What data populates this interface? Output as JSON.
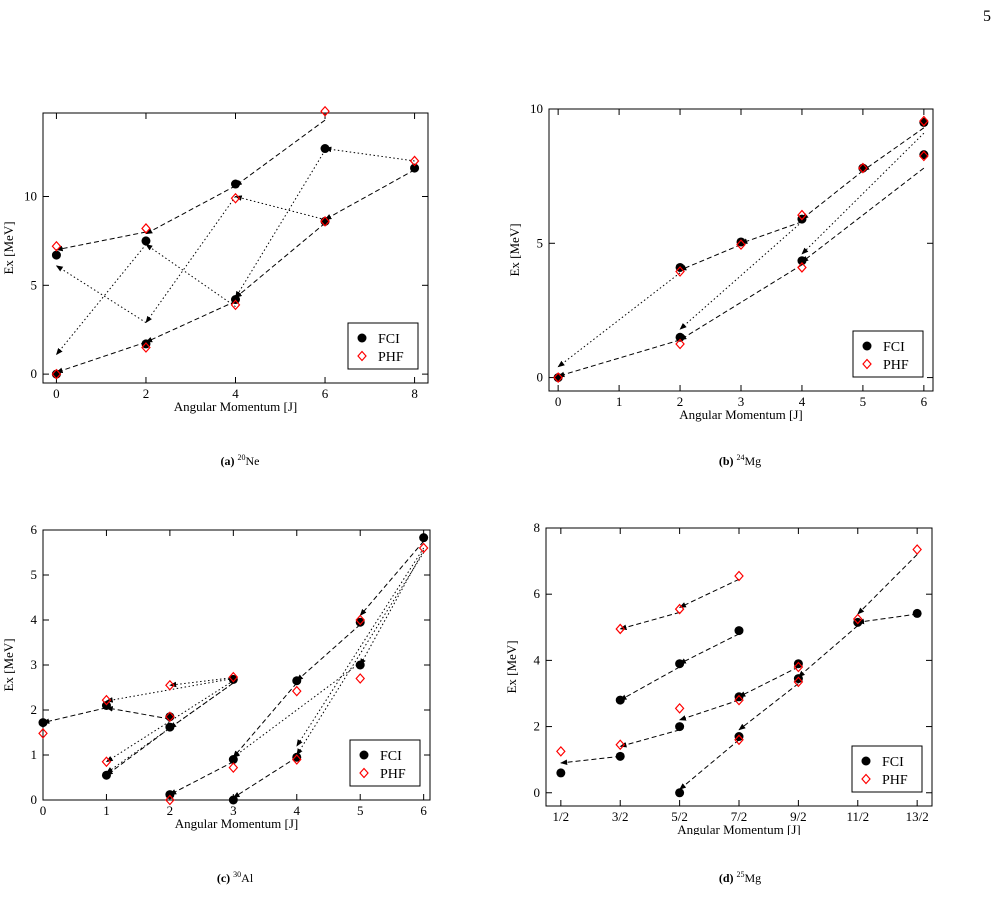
{
  "page_number": "5",
  "chart_data": [
    {
      "type": "scatter",
      "caption_label": "(a)",
      "caption_mass": "20",
      "caption_element": "Ne",
      "xlabel": "Angular Momentum [J]",
      "ylabel": "Ex [MeV]",
      "xlim": [
        -0.3,
        8.3
      ],
      "ylim": [
        -0.5,
        14.7
      ],
      "xticks": [
        0,
        2,
        4,
        6,
        8
      ],
      "xticklabels": [
        "0",
        "2",
        "4",
        "6",
        "8"
      ],
      "yticks": [
        0,
        5,
        10
      ],
      "legend_position": "bottom-right",
      "series": [
        {
          "name": "FCI",
          "marker": "filled-circle",
          "color": "#000000",
          "points": [
            [
              0,
              0
            ],
            [
              0,
              6.7
            ],
            [
              2,
              1.7
            ],
            [
              2,
              7.5
            ],
            [
              4,
              4.2
            ],
            [
              4,
              10.7
            ],
            [
              6,
              8.6
            ],
            [
              6,
              12.7
            ],
            [
              8,
              11.6
            ]
          ]
        },
        {
          "name": "PHF",
          "marker": "open-diamond",
          "color": "#ff0000",
          "points": [
            [
              0,
              0
            ],
            [
              0,
              7.2
            ],
            [
              2,
              1.5
            ],
            [
              2,
              8.2
            ],
            [
              4,
              3.9
            ],
            [
              4,
              9.9
            ],
            [
              6,
              8.6
            ],
            [
              6,
              14.8
            ],
            [
              8,
              12.0
            ]
          ]
        }
      ],
      "arrows": [
        {
          "from": [
            2,
            1.8
          ],
          "to": [
            0,
            0.1
          ],
          "style": "dashed"
        },
        {
          "from": [
            4,
            4.1
          ],
          "to": [
            2,
            1.8
          ],
          "style": "dashed"
        },
        {
          "from": [
            6,
            8.5
          ],
          "to": [
            4,
            4.3
          ],
          "style": "dashed"
        },
        {
          "from": [
            8,
            11.5
          ],
          "to": [
            6,
            8.7
          ],
          "style": "dashed"
        },
        {
          "from": [
            2,
            8.0
          ],
          "to": [
            0,
            7.0
          ],
          "style": "dashed"
        },
        {
          "from": [
            4,
            10.6
          ],
          "to": [
            2,
            7.9
          ],
          "style": "dashed"
        },
        {
          "from": [
            6,
            14.3
          ],
          "to": [
            4,
            10.6
          ],
          "style": "dashed"
        },
        {
          "from": [
            2,
            7.3
          ],
          "to": [
            0,
            1.1
          ],
          "style": "dotted"
        },
        {
          "from": [
            2,
            2.9
          ],
          "to": [
            0,
            6.1
          ],
          "style": "dotted"
        },
        {
          "from": [
            4,
            10.0
          ],
          "to": [
            2,
            2.9
          ],
          "style": "dotted"
        },
        {
          "from": [
            4,
            3.8
          ],
          "to": [
            2,
            7.3
          ],
          "style": "dotted"
        },
        {
          "from": [
            6,
            8.7
          ],
          "to": [
            4,
            10.0
          ],
          "style": "dotted"
        },
        {
          "from": [
            6,
            12.6
          ],
          "to": [
            4,
            4.3
          ],
          "style": "dotted"
        },
        {
          "from": [
            8,
            12.0
          ],
          "to": [
            6,
            12.7
          ],
          "style": "dotted"
        }
      ]
    },
    {
      "type": "scatter",
      "caption_label": "(b)",
      "caption_mass": "24",
      "caption_element": "Mg",
      "xlabel": "Angular Momentum [J]",
      "ylabel": "Ex [MeV]",
      "xlim": [
        -0.15,
        6.15
      ],
      "ylim": [
        -0.5,
        10.0
      ],
      "xticks": [
        0,
        1,
        2,
        3,
        4,
        5,
        6
      ],
      "xticklabels": [
        "0",
        "1",
        "2",
        "3",
        "4",
        "5",
        "6"
      ],
      "yticks": [
        0,
        5,
        10
      ],
      "legend_position": "bottom-right",
      "series": [
        {
          "name": "FCI",
          "marker": "filled-circle",
          "color": "#000000",
          "points": [
            [
              0,
              0
            ],
            [
              2,
              1.5
            ],
            [
              2,
              4.1
            ],
            [
              3,
              5.05
            ],
            [
              4,
              4.35
            ],
            [
              4,
              5.9
            ],
            [
              5,
              7.8
            ],
            [
              6,
              8.3
            ],
            [
              6,
              9.5
            ]
          ]
        },
        {
          "name": "PHF",
          "marker": "open-diamond",
          "color": "#ff0000",
          "points": [
            [
              0,
              0
            ],
            [
              2,
              1.25
            ],
            [
              2,
              3.95
            ],
            [
              3,
              4.95
            ],
            [
              4,
              4.1
            ],
            [
              4,
              6.05
            ],
            [
              5,
              7.8
            ],
            [
              6,
              8.25
            ],
            [
              6,
              9.55
            ]
          ]
        }
      ],
      "arrows": [
        {
          "from": [
            2,
            1.4
          ],
          "to": [
            0,
            0.05
          ],
          "style": "dashed"
        },
        {
          "from": [
            3,
            4.95
          ],
          "to": [
            2,
            4.0
          ],
          "style": "dashed"
        },
        {
          "from": [
            4,
            5.8
          ],
          "to": [
            3,
            5.0
          ],
          "style": "dashed"
        },
        {
          "from": [
            5,
            7.7
          ],
          "to": [
            4,
            5.9
          ],
          "style": "dashed"
        },
        {
          "from": [
            6,
            9.3
          ],
          "to": [
            5,
            7.7
          ],
          "style": "dashed"
        },
        {
          "from": [
            6,
            7.8
          ],
          "to": [
            4,
            4.3
          ],
          "style": "dashed"
        },
        {
          "from": [
            4,
            4.2
          ],
          "to": [
            2,
            1.4
          ],
          "style": "dashed"
        },
        {
          "from": [
            2,
            3.9
          ],
          "to": [
            0,
            0.4
          ],
          "style": "dotted"
        },
        {
          "from": [
            4,
            5.8
          ],
          "to": [
            2,
            1.8
          ],
          "style": "dotted"
        },
        {
          "from": [
            6,
            9.1
          ],
          "to": [
            4,
            4.6
          ],
          "style": "dotted"
        }
      ]
    },
    {
      "type": "scatter",
      "caption_label": "(c)",
      "caption_mass": "30",
      "caption_element": "Al",
      "xlabel": "Angular Momentum [J]",
      "ylabel": "Ex [MeV]",
      "xlim": [
        0,
        6.1
      ],
      "ylim": [
        0,
        6.0
      ],
      "xticks": [
        0,
        1,
        2,
        3,
        4,
        5,
        6
      ],
      "xticklabels": [
        "0",
        "1",
        "2",
        "3",
        "4",
        "5",
        "6"
      ],
      "yticks": [
        0,
        1,
        2,
        3,
        4,
        5,
        6
      ],
      "legend_position": "bottom-right",
      "series": [
        {
          "name": "FCI",
          "marker": "filled-circle",
          "color": "#000000",
          "points": [
            [
              0,
              1.72
            ],
            [
              1,
              0.55
            ],
            [
              1,
              2.1
            ],
            [
              2,
              0.12
            ],
            [
              2,
              1.62
            ],
            [
              2,
              1.85
            ],
            [
              3,
              0.0
            ],
            [
              3,
              0.9
            ],
            [
              3,
              2.68
            ],
            [
              4,
              0.95
            ],
            [
              4,
              2.65
            ],
            [
              5,
              3.0
            ],
            [
              5,
              3.95
            ],
            [
              6,
              5.83
            ]
          ]
        },
        {
          "name": "PHF",
          "marker": "open-diamond",
          "color": "#ff0000",
          "points": [
            [
              0,
              1.48
            ],
            [
              1,
              0.85
            ],
            [
              1,
              2.22
            ],
            [
              2,
              0.0
            ],
            [
              2,
              1.85
            ],
            [
              2,
              2.55
            ],
            [
              3,
              0.72
            ],
            [
              3,
              2.73
            ],
            [
              4,
              0.9
            ],
            [
              4,
              2.42
            ],
            [
              5,
              2.7
            ],
            [
              5,
              4.0
            ],
            [
              6,
              5.6
            ]
          ]
        }
      ],
      "arrows": [
        {
          "from": [
            1,
            2.05
          ],
          "to": [
            0,
            1.72
          ],
          "style": "dashed"
        },
        {
          "from": [
            2,
            1.8
          ],
          "to": [
            1,
            2.05
          ],
          "style": "dashed"
        },
        {
          "from": [
            3,
            2.6
          ],
          "to": [
            2,
            1.6
          ],
          "style": "dashed"
        },
        {
          "from": [
            2,
            1.6
          ],
          "to": [
            1,
            0.55
          ],
          "style": "dashed"
        },
        {
          "from": [
            3,
            0.85
          ],
          "to": [
            2,
            0.12
          ],
          "style": "dashed"
        },
        {
          "from": [
            4,
            0.95
          ],
          "to": [
            3,
            0.05
          ],
          "style": "dashed"
        },
        {
          "from": [
            4,
            2.6
          ],
          "to": [
            3,
            0.95
          ],
          "style": "dashed"
        },
        {
          "from": [
            5,
            3.9
          ],
          "to": [
            4,
            2.65
          ],
          "style": "dashed"
        },
        {
          "from": [
            6,
            5.75
          ],
          "to": [
            5,
            4.1
          ],
          "style": "dashed"
        },
        {
          "from": [
            3,
            2.7
          ],
          "to": [
            1,
            2.2
          ],
          "style": "dotted"
        },
        {
          "from": [
            3,
            2.72
          ],
          "to": [
            2,
            2.55
          ],
          "style": "dotted"
        },
        {
          "from": [
            3,
            2.65
          ],
          "to": [
            1,
            0.85
          ],
          "style": "dotted"
        },
        {
          "from": [
            3,
            2.6
          ],
          "to": [
            1,
            0.6
          ],
          "style": "dotted"
        },
        {
          "from": [
            5,
            3.05
          ],
          "to": [
            3,
            0.95
          ],
          "style": "dotted"
        },
        {
          "from": [
            6,
            5.6
          ],
          "to": [
            4,
            1.2
          ],
          "style": "dotted"
        },
        {
          "from": [
            6,
            5.55
          ],
          "to": [
            5,
            3.0
          ],
          "style": "dotted"
        },
        {
          "from": [
            6,
            5.5
          ],
          "to": [
            4,
            1.0
          ],
          "style": "dotted"
        }
      ]
    },
    {
      "type": "scatter",
      "caption_label": "(d)",
      "caption_mass": "25",
      "caption_element": "Mg",
      "xlabel": "Angular Momentum [J]",
      "ylabel": "Ex [MeV]",
      "xlim": [
        0.25,
        6.75
      ],
      "ylim": [
        -0.4,
        8.0
      ],
      "xticks": [
        0.5,
        1.5,
        2.5,
        3.5,
        4.5,
        5.5,
        6.5
      ],
      "xticklabels": [
        "1/2",
        "3/2",
        "5/2",
        "7/2",
        "9/2",
        "11/2",
        "13/2"
      ],
      "yticks": [
        0,
        2,
        4,
        6,
        8
      ],
      "legend_position": "bottom-right",
      "series": [
        {
          "name": "FCI",
          "marker": "filled-circle",
          "color": "#000000",
          "points": [
            [
              0.5,
              0.6
            ],
            [
              1.5,
              1.1
            ],
            [
              1.5,
              2.8
            ],
            [
              2.5,
              0.0
            ],
            [
              2.5,
              2.0
            ],
            [
              2.5,
              3.9
            ],
            [
              3.5,
              1.7
            ],
            [
              3.5,
              2.9
            ],
            [
              3.5,
              4.9
            ],
            [
              4.5,
              3.45
            ],
            [
              4.5,
              3.9
            ],
            [
              5.5,
              5.15
            ],
            [
              6.5,
              5.42
            ]
          ]
        },
        {
          "name": "PHF",
          "marker": "open-diamond",
          "color": "#ff0000",
          "points": [
            [
              0.5,
              1.25
            ],
            [
              1.5,
              1.45
            ],
            [
              1.5,
              4.95
            ],
            [
              2.5,
              2.55
            ],
            [
              2.5,
              5.55
            ],
            [
              3.5,
              1.6
            ],
            [
              3.5,
              2.8
            ],
            [
              3.5,
              6.55
            ],
            [
              4.5,
              3.35
            ],
            [
              4.5,
              3.8
            ],
            [
              5.5,
              5.25
            ],
            [
              6.5,
              7.35
            ]
          ]
        }
      ],
      "arrows": [
        {
          "from": [
            1.5,
            1.1
          ],
          "to": [
            0.5,
            0.9
          ],
          "style": "dashed"
        },
        {
          "from": [
            2.5,
            1.9
          ],
          "to": [
            1.5,
            1.4
          ],
          "style": "dashed"
        },
        {
          "from": [
            3.5,
            2.8
          ],
          "to": [
            2.5,
            2.2
          ],
          "style": "dashed"
        },
        {
          "from": [
            4.5,
            3.8
          ],
          "to": [
            3.5,
            2.9
          ],
          "style": "dashed"
        },
        {
          "from": [
            3.5,
            1.6
          ],
          "to": [
            2.5,
            0.1
          ],
          "style": "dashed"
        },
        {
          "from": [
            4.5,
            3.3
          ],
          "to": [
            3.5,
            1.9
          ],
          "style": "dashed"
        },
        {
          "from": [
            5.5,
            5.05
          ],
          "to": [
            4.5,
            3.5
          ],
          "style": "dashed"
        },
        {
          "from": [
            6.5,
            5.4
          ],
          "to": [
            5.5,
            5.15
          ],
          "style": "dashed"
        },
        {
          "from": [
            6.5,
            7.2
          ],
          "to": [
            5.5,
            5.4
          ],
          "style": "dashed"
        },
        {
          "from": [
            2.5,
            3.8
          ],
          "to": [
            1.5,
            2.8
          ],
          "style": "dashed"
        },
        {
          "from": [
            3.5,
            4.8
          ],
          "to": [
            2.5,
            3.9
          ],
          "style": "dashed"
        },
        {
          "from": [
            2.5,
            5.45
          ],
          "to": [
            1.5,
            4.95
          ],
          "style": "dashed"
        },
        {
          "from": [
            3.5,
            6.45
          ],
          "to": [
            2.5,
            5.6
          ],
          "style": "dashed"
        }
      ]
    }
  ]
}
